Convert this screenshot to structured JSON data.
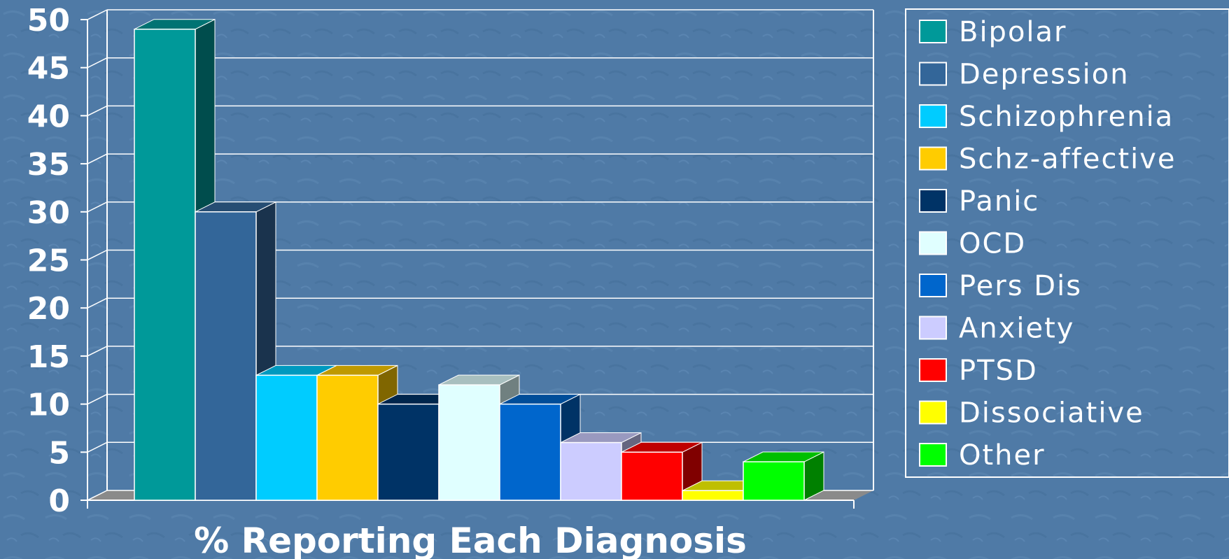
{
  "chart_data": {
    "type": "bar",
    "title": "",
    "xlabel": "% Reporting Each Diagnosis",
    "ylabel": "",
    "ylim": [
      0,
      50
    ],
    "y_ticks": [
      "0",
      "5",
      "10",
      "15",
      "20",
      "25",
      "30",
      "35",
      "40",
      "45",
      "50"
    ],
    "grid": true,
    "legend_position": "right",
    "categories": [
      "Bipolar",
      "Depression",
      "Schizophrenia",
      "Schz-affective",
      "Panic",
      "OCD",
      "Pers Dis",
      "Anxiety",
      "PTSD",
      "Dissociative",
      "Other"
    ],
    "values": [
      49,
      30,
      13,
      13,
      10,
      12,
      10,
      6,
      5,
      1,
      4
    ],
    "colors": [
      "#009999",
      "#336699",
      "#00ccff",
      "#ffcc00",
      "#003366",
      "#e0ffff",
      "#0066cc",
      "#ccccff",
      "#ff0000",
      "#ffff00",
      "#00ff00"
    ]
  },
  "colors": {
    "background": "#4f7aa6",
    "grid": "#ffffff",
    "floor": "#8a8a8a"
  }
}
